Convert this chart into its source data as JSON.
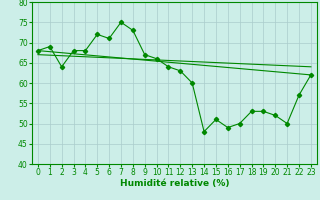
{
  "xlabel": "Humidité relative (%)",
  "background_color": "#cceee8",
  "grid_color": "#aacccc",
  "line_color": "#008800",
  "xlim": [
    -0.5,
    23.5
  ],
  "ylim": [
    40,
    80
  ],
  "yticks": [
    40,
    45,
    50,
    55,
    60,
    65,
    70,
    75,
    80
  ],
  "xticks": [
    0,
    1,
    2,
    3,
    4,
    5,
    6,
    7,
    8,
    9,
    10,
    11,
    12,
    13,
    14,
    15,
    16,
    17,
    18,
    19,
    20,
    21,
    22,
    23
  ],
  "series1_x": [
    0,
    1,
    2,
    3,
    4,
    5,
    6,
    7,
    8,
    9,
    10,
    11,
    12,
    13,
    14,
    15,
    16,
    17,
    18,
    19,
    20,
    21,
    22,
    23
  ],
  "series1_y": [
    68,
    69,
    64,
    68,
    68,
    72,
    71,
    75,
    73,
    67,
    66,
    64,
    63,
    60,
    48,
    51,
    49,
    50,
    53,
    53,
    52,
    50,
    57,
    62
  ],
  "series2_x": [
    0,
    23
  ],
  "series2_y": [
    68,
    62
  ],
  "series3_x": [
    0,
    23
  ],
  "series3_y": [
    67,
    64
  ]
}
